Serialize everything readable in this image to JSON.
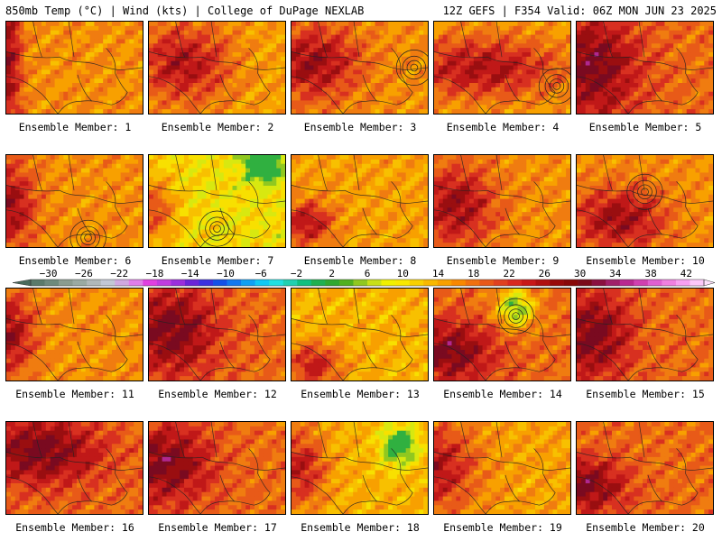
{
  "header": {
    "left": "850mb Temp (°C) | Wind (kts) | College of DuPage NEXLAB",
    "right": "12Z GEFS | F354 Valid: 06Z MON JUN 23 2025"
  },
  "member_prefix": "Ensemble Member: ",
  "members": [
    {
      "label": "Ensemble Member: 1",
      "base": 22,
      "heat": [
        0.0,
        0.4,
        0.1,
        0.9,
        0.02,
        0.03
      ],
      "cool": null,
      "ring": null
    },
    {
      "label": "Ensemble Member: 2",
      "base": 21,
      "heat": [
        0.25,
        0.45,
        0.35,
        0.45,
        0.02,
        0.03
      ],
      "cool": null,
      "ring": null
    },
    {
      "label": "Ensemble Member: 3",
      "base": 22,
      "heat": [
        0.15,
        0.45,
        0.35,
        0.4,
        0.02,
        0.03
      ],
      "cool": null,
      "ring": [
        0.9,
        0.5
      ]
    },
    {
      "label": "Ensemble Member: 4",
      "base": 21,
      "heat": [
        0.35,
        0.5,
        0.6,
        0.35,
        0.0,
        0.02
      ],
      "cool": null,
      "ring": [
        0.9,
        0.7
      ]
    },
    {
      "label": "Ensemble Member: 5",
      "base": 24,
      "heat": [
        0.1,
        0.5,
        0.35,
        0.6,
        0.02,
        0.04
      ],
      "cool": null,
      "ring": null
    },
    {
      "label": "Ensemble Member: 6",
      "base": 22,
      "heat": [
        0.0,
        0.55,
        0.2,
        0.5,
        0.0,
        0.04
      ],
      "cool": null,
      "ring": [
        0.6,
        0.9
      ]
    },
    {
      "label": "Ensemble Member: 7",
      "base": 17,
      "heat": [
        0.0,
        0.6,
        0.2,
        0.4,
        0.0,
        0.03
      ],
      "cool": [
        0.85,
        0.05
      ],
      "ring": [
        0.5,
        0.8
      ]
    },
    {
      "label": "Ensemble Member: 8",
      "base": 21,
      "heat": [
        0.1,
        0.75,
        0.2,
        0.25,
        0.02,
        0.03
      ],
      "cool": null,
      "ring": null
    },
    {
      "label": "Ensemble Member: 9",
      "base": 22,
      "heat": [
        0.15,
        0.55,
        0.3,
        0.45,
        0.03,
        0.04
      ],
      "cool": null,
      "ring": null
    },
    {
      "label": "Ensemble Member: 10",
      "base": 22,
      "heat": [
        0.3,
        0.7,
        0.35,
        0.35,
        0.05,
        0.04
      ],
      "cool": null,
      "ring": [
        0.5,
        0.4
      ]
    },
    {
      "label": "Ensemble Member: 11",
      "base": 22,
      "heat": [
        0.0,
        0.5,
        0.2,
        0.45,
        0.02,
        0.03
      ],
      "cool": null,
      "ring": null
    },
    {
      "label": "Ensemble Member: 12",
      "base": 24,
      "heat": [
        0.15,
        0.45,
        0.35,
        0.5,
        0.03,
        0.04
      ],
      "cool": null,
      "ring": null
    },
    {
      "label": "Ensemble Member: 13",
      "base": 20,
      "heat": [
        0.15,
        0.85,
        0.2,
        0.25,
        0.02,
        0.03
      ],
      "cool": null,
      "ring": null
    },
    {
      "label": "Ensemble Member: 14",
      "base": 24,
      "heat": [
        0.1,
        0.7,
        0.35,
        0.35,
        0.02,
        0.04
      ],
      "cool": [
        0.6,
        0.2
      ],
      "ring": [
        0.6,
        0.3
      ]
    },
    {
      "label": "Ensemble Member: 15",
      "base": 24,
      "heat": [
        0.1,
        0.5,
        0.3,
        0.5,
        0.02,
        0.04
      ],
      "cool": null,
      "ring": null
    },
    {
      "label": "Ensemble Member: 16",
      "base": 24,
      "heat": [
        0.25,
        0.3,
        0.45,
        0.4,
        0.02,
        0.04
      ],
      "cool": null,
      "ring": null
    },
    {
      "label": "Ensemble Member: 17",
      "base": 24,
      "heat": [
        0.1,
        0.45,
        0.35,
        0.45,
        0.02,
        0.04
      ],
      "cool": null,
      "ring": null
    },
    {
      "label": "Ensemble Member: 18",
      "base": 20,
      "heat": [
        0.05,
        0.5,
        0.2,
        0.45,
        0.0,
        0.03
      ],
      "cool": [
        0.8,
        0.25
      ],
      "ring": null
    },
    {
      "label": "Ensemble Member: 19",
      "base": 21,
      "heat": [
        0.0,
        0.5,
        0.3,
        0.5,
        0.0,
        0.03
      ],
      "cool": null,
      "ring": null
    },
    {
      "label": "Ensemble Member: 20",
      "base": 24,
      "heat": [
        0.05,
        0.7,
        0.3,
        0.3,
        0.02,
        0.04
      ],
      "cool": null,
      "ring": null
    }
  ],
  "colorbar": {
    "ticks": [
      "-30",
      "-26",
      "-22",
      "-18",
      "-14",
      "-10",
      "-6",
      "-2",
      "2",
      "6",
      "10",
      "14",
      "18",
      "22",
      "26",
      "30",
      "34",
      "38",
      "42"
    ],
    "colors": [
      "#5a7a6a",
      "#6e8a7c",
      "#8a9c90",
      "#9aaaa2",
      "#b0b8b8",
      "#c2c8d4",
      "#d0a8e0",
      "#e07ee8",
      "#e040e0",
      "#c03ce0",
      "#9a2edc",
      "#6a24d8",
      "#3a30e0",
      "#1450e8",
      "#1078f0",
      "#10a0f4",
      "#10c8f4",
      "#20e0e0",
      "#20d0b0",
      "#10c080",
      "#20b050",
      "#30a830",
      "#50b020",
      "#90c820",
      "#c8e018",
      "#f0f000",
      "#f8e800",
      "#f8d000",
      "#f8b800",
      "#f8a000",
      "#f88800",
      "#f07010",
      "#e85818",
      "#e04020",
      "#d82820",
      "#c81818",
      "#b01010",
      "#980a0a",
      "#880808",
      "#7a0a1a",
      "#8a1040",
      "#a0206a",
      "#b82890",
      "#d040b0",
      "#e060d0",
      "#f080e0",
      "#f8a0f0",
      "#fcc8f8"
    ]
  }
}
